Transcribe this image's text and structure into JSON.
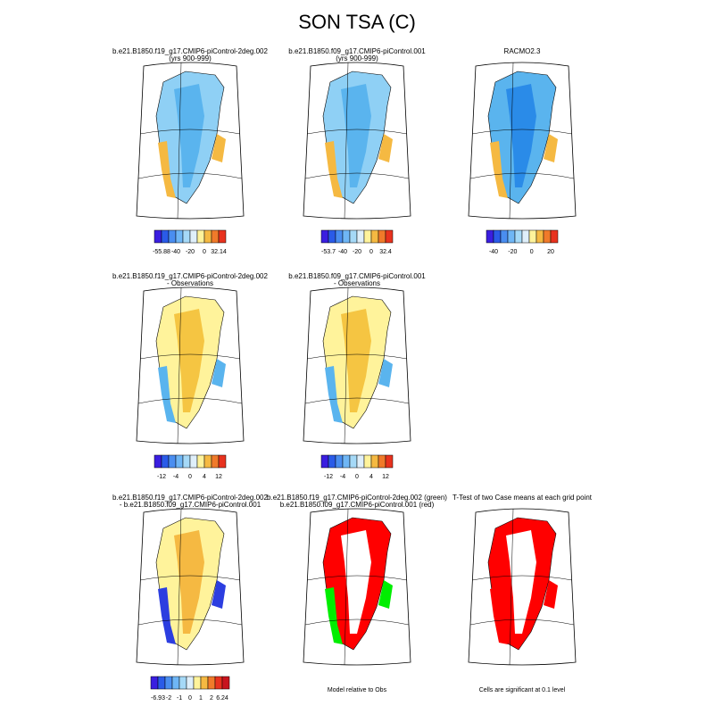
{
  "title": "SON TSA (C)",
  "panels": [
    {
      "title": [
        "b.e21.B1850.f19_g17.CMIP6-piControl-2deg.002",
        "(yrs 900-999)"
      ],
      "colorbar_labels": [
        "-55.88",
        "-40",
        "-20",
        "0",
        "32.14"
      ]
    },
    {
      "title": [
        "b.e21.B1850.f09_g17.CMIP6-piControl.001",
        "(yrs 900-999)"
      ],
      "colorbar_labels": [
        "-53.7",
        "-40",
        "-20",
        "0",
        "32.4"
      ]
    },
    {
      "title": [
        "RACMO2.3"
      ],
      "colorbar_labels": [
        "-40",
        "-20",
        "0",
        "20"
      ]
    },
    {
      "title": [
        "b.e21.B1850.f19_g17.CMIP6-piControl-2deg.002",
        " - Observations"
      ],
      "colorbar_labels": [
        "-12",
        "-4",
        "0",
        "4",
        "12"
      ]
    },
    {
      "title": [
        "b.e21.B1850.f09_g17.CMIP6-piControl.001",
        " - Observations"
      ],
      "colorbar_labels": [
        "-12",
        "-4",
        "0",
        "4",
        "12"
      ]
    },
    {
      "title": [
        "b.e21.B1850.f19_g17.CMIP6-piControl-2deg.002",
        " - b.e21.B1850.f09_g17.CMIP6-piControl.001"
      ],
      "colorbar_labels": [
        "-6.93",
        "-2",
        "-1",
        "0",
        "1",
        "2",
        "6.24"
      ]
    },
    {
      "title": [
        "b.e21.B1850.f19_g17.CMIP6-piControl-2deg.002 (green)",
        "b.e21.B1850.f09_g17.CMIP6-piControl.001 (red)"
      ],
      "caption": "Model relative to Obs"
    },
    {
      "title": [
        "T-Test of two Case means at each grid point"
      ],
      "caption": "Cells are significant at 0.1 level"
    }
  ]
}
